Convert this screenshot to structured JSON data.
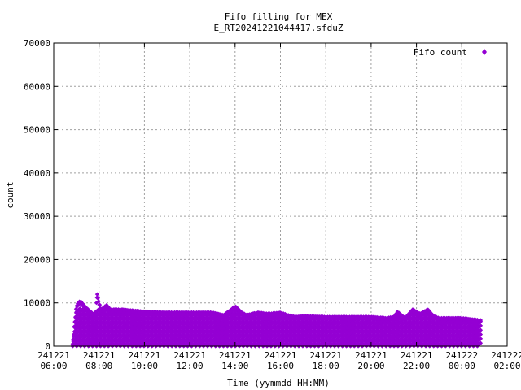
{
  "chart_data": {
    "type": "scatter",
    "title": "Fifo filling for MEX",
    "subtitle": "E_RT20241221044417.sfduZ",
    "xlabel": "Time (yymmdd HH:MM)",
    "ylabel": "count",
    "x_range": [
      "2024-12-21 06:00",
      "2024-12-22 02:00"
    ],
    "ylim": [
      0,
      70000
    ],
    "x_ticks": [
      {
        "date": "241221",
        "time": "06:00"
      },
      {
        "date": "241221",
        "time": "08:00"
      },
      {
        "date": "241221",
        "time": "10:00"
      },
      {
        "date": "241221",
        "time": "12:00"
      },
      {
        "date": "241221",
        "time": "14:00"
      },
      {
        "date": "241221",
        "time": "16:00"
      },
      {
        "date": "241221",
        "time": "18:00"
      },
      {
        "date": "241221",
        "time": "20:00"
      },
      {
        "date": "241221",
        "time": "22:00"
      },
      {
        "date": "241222",
        "time": "00:00"
      },
      {
        "date": "241222",
        "time": "02:00"
      }
    ],
    "y_ticks": [
      "0",
      "10000",
      "20000",
      "30000",
      "40000",
      "50000",
      "60000",
      "70000"
    ],
    "grid": true,
    "legend_position": "top-right",
    "series": [
      {
        "name": "Fifo count",
        "color": "#9400d3",
        "marker": "diamond",
        "time_range": [
          "2024-12-21 06:50",
          "2024-12-22 00:50"
        ],
        "sample_levels": [
          0,
          1000,
          2000,
          3000,
          4000,
          5000,
          6000,
          7000,
          8000
        ],
        "envelope_max": [
          [
            "06:50",
            500
          ],
          [
            "07:00",
            9500
          ],
          [
            "07:10",
            10500
          ],
          [
            "07:25",
            9000
          ],
          [
            "07:50",
            7000
          ],
          [
            "07:55",
            12000
          ],
          [
            "08:05",
            8500
          ],
          [
            "08:20",
            9500
          ],
          [
            "08:30",
            8500
          ],
          [
            "09:00",
            8500
          ],
          [
            "10:00",
            8000
          ],
          [
            "11:00",
            7800
          ],
          [
            "12:00",
            7800
          ],
          [
            "13:00",
            7800
          ],
          [
            "13:30",
            7200
          ],
          [
            "13:50",
            8500
          ],
          [
            "14:00",
            9300
          ],
          [
            "14:15",
            8000
          ],
          [
            "14:30",
            7200
          ],
          [
            "15:00",
            7800
          ],
          [
            "15:30",
            7500
          ],
          [
            "16:00",
            7800
          ],
          [
            "16:20",
            7200
          ],
          [
            "16:40",
            6800
          ],
          [
            "17:00",
            7000
          ],
          [
            "18:00",
            6800
          ],
          [
            "19:00",
            6800
          ],
          [
            "20:00",
            6800
          ],
          [
            "20:40",
            6500
          ],
          [
            "21:00",
            6800
          ],
          [
            "21:10",
            8000
          ],
          [
            "21:30",
            6500
          ],
          [
            "21:50",
            8500
          ],
          [
            "22:10",
            7500
          ],
          [
            "22:30",
            8500
          ],
          [
            "22:45",
            7000
          ],
          [
            "23:00",
            6500
          ],
          [
            "00:00",
            6500
          ],
          [
            "00:50",
            6000
          ]
        ],
        "y_max_observed": 12000
      }
    ]
  }
}
